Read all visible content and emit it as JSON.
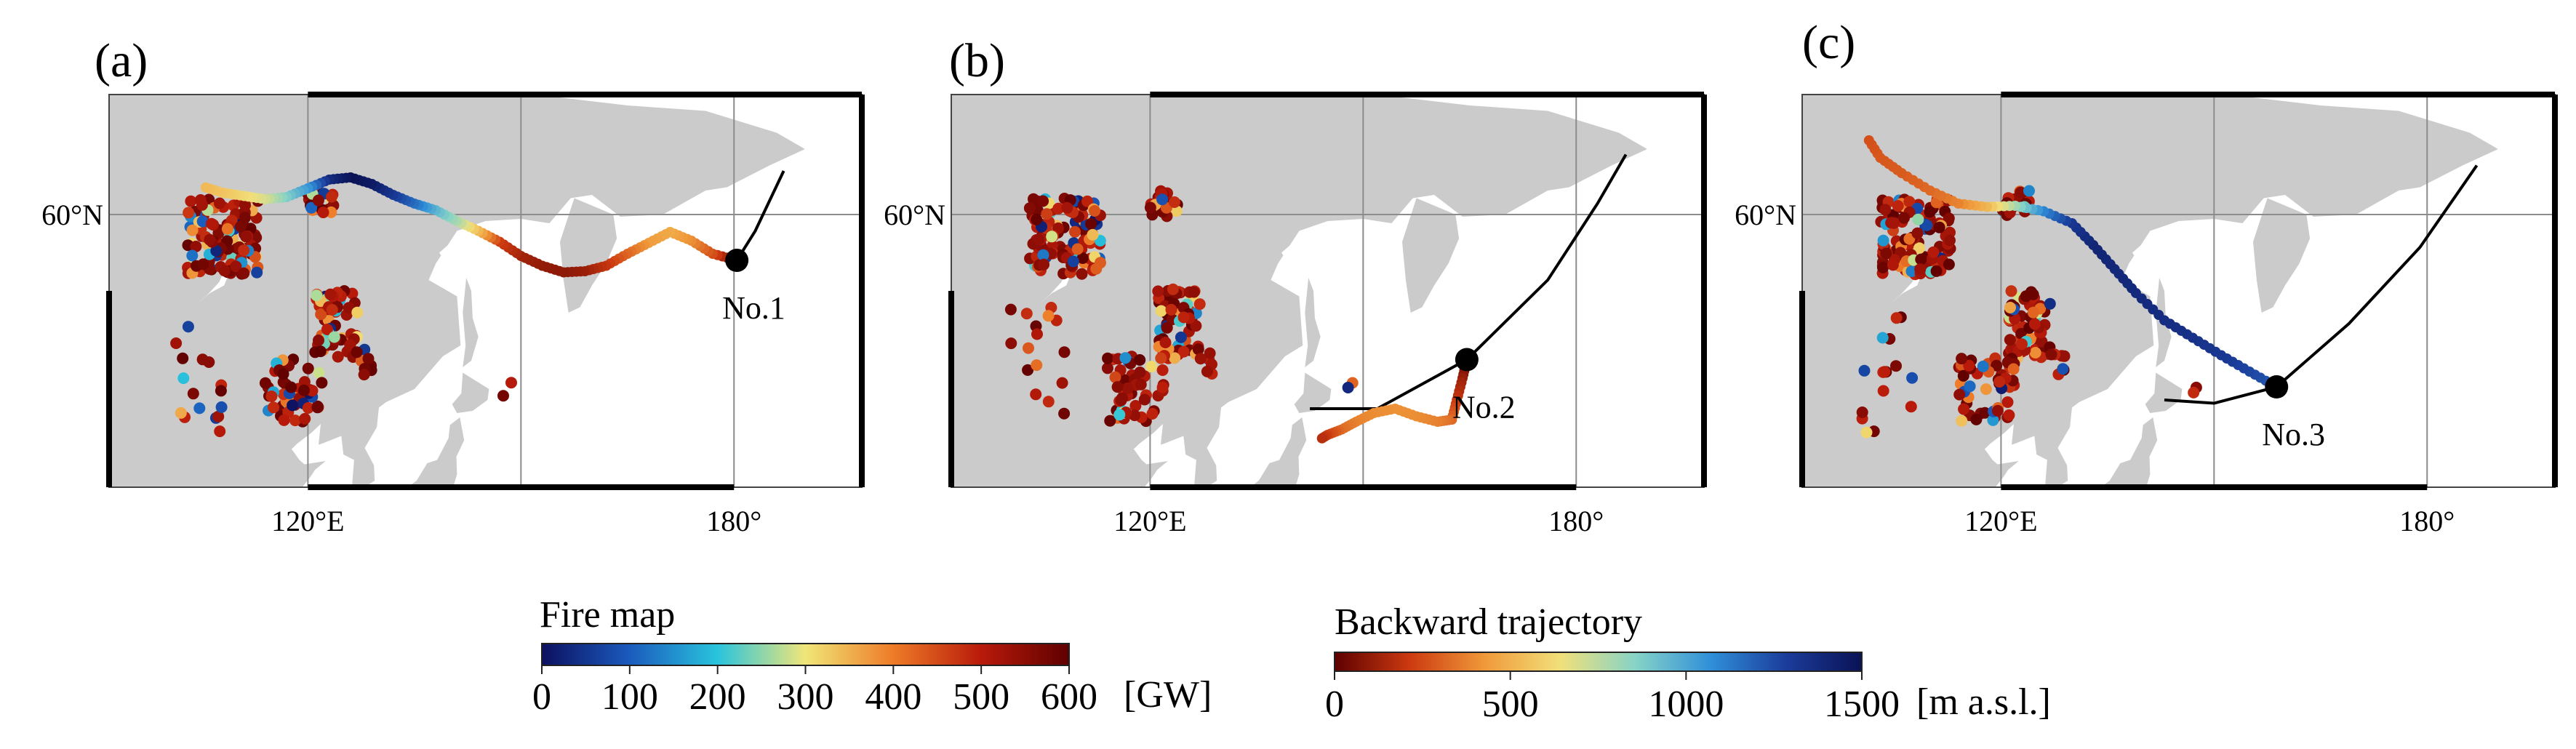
{
  "panels": [
    {
      "id": "a",
      "label": "(a)",
      "station": "No.1",
      "trajectory": [
        [
          180.4,
          55.8
        ],
        [
          177,
          56.4
        ],
        [
          174,
          57.6
        ],
        [
          171,
          58.4
        ],
        [
          168,
          57.4
        ],
        [
          165,
          56.4
        ],
        [
          162,
          55.3
        ],
        [
          159,
          54.8
        ],
        [
          156,
          54.7
        ],
        [
          153,
          55.3
        ],
        [
          150,
          56.2
        ],
        [
          147,
          57.5
        ],
        [
          144,
          58.5
        ],
        [
          141,
          59.4
        ],
        [
          138,
          60.4
        ],
        [
          135,
          61.0
        ],
        [
          132,
          61.8
        ],
        [
          129,
          62.8
        ],
        [
          126,
          63.4
        ],
        [
          123,
          63.2
        ],
        [
          120,
          62.4
        ],
        [
          117,
          61.6
        ],
        [
          114,
          61.4
        ],
        [
          111,
          61.7
        ],
        [
          108,
          62.0
        ],
        [
          105,
          62.6
        ]
      ],
      "heights": [
        0,
        260,
        400,
        480,
        440,
        320,
        200,
        120,
        90,
        100,
        130,
        220,
        520,
        780,
        950,
        1150,
        1300,
        1450,
        1500,
        1380,
        1050,
        880,
        700,
        620,
        560,
        520
      ]
    },
    {
      "id": "b",
      "label": "(b)",
      "station": "No.2",
      "trajectory": [
        [
          164.6,
          46.7
        ],
        [
          164,
          45
        ],
        [
          163.2,
          43
        ],
        [
          162.5,
          41.2
        ],
        [
          160.5,
          41.0
        ],
        [
          157.5,
          41.5
        ],
        [
          154.5,
          42.2
        ],
        [
          151.5,
          41.8
        ],
        [
          149,
          41.0
        ],
        [
          147,
          40.3
        ],
        [
          145,
          39.8
        ],
        [
          144,
          39.4
        ]
      ],
      "heights": [
        0,
        110,
        200,
        320,
        370,
        400,
        410,
        400,
        380,
        330,
        230,
        160
      ]
    },
    {
      "id": "c",
      "label": "(c)",
      "station": "No.3",
      "trajectory": [
        [
          158.8,
          44.2
        ],
        [
          155,
          45.6
        ],
        [
          151,
          47.1
        ],
        [
          147,
          48.7
        ],
        [
          143,
          50.3
        ],
        [
          139,
          52.8
        ],
        [
          136,
          55.0
        ],
        [
          133,
          57.2
        ],
        [
          130,
          59.2
        ],
        [
          126,
          60.3
        ],
        [
          122,
          60.8
        ],
        [
          118,
          60.7
        ],
        [
          114,
          61.0
        ],
        [
          110,
          62.2
        ],
        [
          106,
          63.8
        ],
        [
          103,
          65.2
        ],
        [
          101,
          67.2
        ]
      ],
      "heights": [
        1200,
        1260,
        1310,
        1340,
        1360,
        1380,
        1390,
        1400,
        1320,
        1100,
        800,
        520,
        380,
        320,
        290,
        280,
        260
      ]
    }
  ],
  "axes": {
    "lon_labels": [
      {
        "value": 120,
        "text": "120°E"
      },
      {
        "value": 180,
        "text": "180°"
      }
    ],
    "lat_labels": [
      {
        "value": 60,
        "text": "60°N"
      }
    ]
  },
  "colorbars": {
    "fire": {
      "title": "Fire map",
      "unit": "[GW]",
      "ticks": [
        "0",
        "100",
        "200",
        "300",
        "400",
        "500",
        "600"
      ],
      "range": [
        0,
        600
      ],
      "stops": [
        "#0d1060",
        "#1a5bbd",
        "#29c4dd",
        "#f0e678",
        "#ee7b28",
        "#b81a0a",
        "#5e0000"
      ]
    },
    "trajectory": {
      "title": "Backward trajectory",
      "unit": "[m a.s.l.]",
      "ticks": [
        "0",
        "500",
        "1000",
        "1500"
      ],
      "range": [
        0,
        1500
      ],
      "stops": [
        "#5e0000",
        "#cc3a10",
        "#f09a3a",
        "#f1e07a",
        "#86d3c7",
        "#2f8fd8",
        "#1b3c9a",
        "#0a1255"
      ]
    }
  },
  "colors": {
    "land": "#cbcbcb",
    "water": "#ffffff",
    "grid": "#8c8c8c",
    "route": "#000000"
  }
}
